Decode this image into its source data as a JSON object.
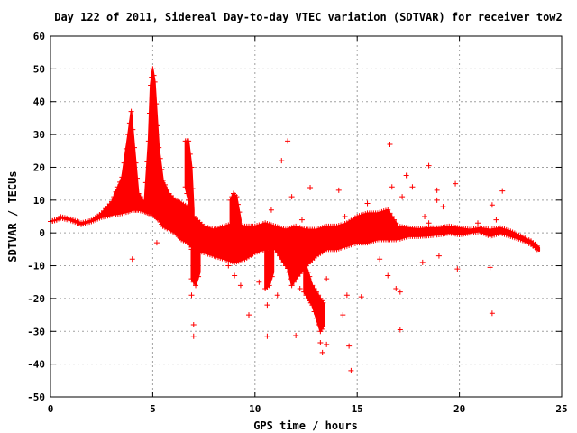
{
  "chart_data": {
    "type": "scatter",
    "title": "Day 122 of 2011, Sidereal Day-to-day VTEC variation (SDTVAR) for receiver tow2",
    "xlabel": "GPS time / hours",
    "ylabel": "SDTVAR / TECUs",
    "xlim": [
      0,
      25
    ],
    "ylim": [
      -50,
      60
    ],
    "xticks": [
      0,
      5,
      10,
      15,
      20,
      25
    ],
    "yticks": [
      -50,
      -40,
      -30,
      -20,
      -10,
      0,
      10,
      20,
      30,
      40,
      50,
      60
    ],
    "grid": true,
    "marker": "+",
    "color": "#ff0000",
    "series": [
      {
        "bands": [
          [
            [
              0,
              3.5,
              3.5
            ],
            [
              0.3,
              4,
              4
            ],
            [
              0.5,
              4.6,
              4.9
            ],
            [
              1,
              3.8,
              4.2
            ],
            [
              1.5,
              2.6,
              3
            ],
            [
              2,
              3.5,
              3.8
            ],
            [
              2.5,
              4.8,
              6
            ],
            [
              3,
              5.5,
              9.5
            ],
            [
              3.5,
              6,
              17
            ],
            [
              3.8,
              6.5,
              30
            ],
            [
              3.95,
              7,
              37
            ],
            [
              4.1,
              7,
              26
            ],
            [
              4.3,
              7,
              12
            ],
            [
              4.6,
              6.5,
              9
            ],
            [
              4.8,
              6,
              28
            ],
            [
              4.9,
              6,
              45
            ],
            [
              5,
              6,
              50
            ],
            [
              5.1,
              5,
              46
            ],
            [
              5.3,
              4,
              26
            ],
            [
              5.5,
              2,
              16
            ],
            [
              5.8,
              1,
              12
            ],
            [
              6.1,
              0,
              10
            ],
            [
              6.4,
              -2,
              9
            ],
            [
              6.7,
              -3,
              8
            ],
            [
              7,
              -5,
              5
            ],
            [
              7.5,
              -6,
              2
            ],
            [
              8,
              -7,
              1
            ],
            [
              8.5,
              -8,
              2
            ],
            [
              9,
              -9,
              3
            ],
            [
              9.5,
              -8,
              2
            ],
            [
              10,
              -6,
              2
            ],
            [
              10.5,
              -5,
              3
            ],
            [
              11,
              -5,
              2
            ],
            [
              11.5,
              -10,
              1
            ],
            [
              12,
              -14,
              2
            ],
            [
              12.5,
              -10,
              1
            ],
            [
              13,
              -7,
              1
            ],
            [
              13.5,
              -5,
              2
            ],
            [
              14,
              -5,
              2
            ],
            [
              14.5,
              -4,
              3
            ],
            [
              15,
              -3,
              5
            ],
            [
              15.5,
              -3,
              6
            ],
            [
              16,
              -2,
              6
            ],
            [
              16.5,
              -2,
              7
            ],
            [
              17,
              -2,
              2
            ],
            [
              17.5,
              -1,
              1.5
            ],
            [
              18,
              -1,
              1.2
            ],
            [
              18.5,
              -0.8,
              1.5
            ],
            [
              19,
              -0.5,
              1.5
            ],
            [
              19.5,
              0,
              2
            ],
            [
              20,
              -0.5,
              1.5
            ],
            [
              20.5,
              0,
              1
            ],
            [
              21,
              0.5,
              1.5
            ],
            [
              21.5,
              -1,
              1
            ],
            [
              22,
              0,
              1.5
            ],
            [
              22.5,
              -1,
              0.5
            ],
            [
              23,
              -2,
              -1
            ],
            [
              23.5,
              -3.5,
              -2.5
            ],
            [
              23.9,
              -5.5,
              -4.5
            ]
          ],
          [
            [
              6.6,
              14,
              28
            ],
            [
              6.75,
              10,
              28
            ],
            [
              6.9,
              0,
              20
            ],
            [
              7,
              -1,
              7
            ]
          ],
          [
            [
              8.8,
              0,
              10
            ],
            [
              8.95,
              0,
              12
            ],
            [
              9.1,
              -3,
              11
            ],
            [
              9.3,
              -1,
              4
            ]
          ],
          [
            [
              12.4,
              -18,
              -8
            ],
            [
              12.6,
              -20,
              -12
            ],
            [
              12.8,
              -22,
              -16
            ],
            [
              13,
              -26,
              -18
            ],
            [
              13.2,
              -30,
              -20
            ],
            [
              13.4,
              -28,
              -22
            ]
          ],
          [
            [
              6.9,
              -14,
              -5
            ],
            [
              7.1,
              -16,
              -6
            ],
            [
              7.3,
              -12,
              -5
            ]
          ],
          [
            [
              10.5,
              -17,
              -5
            ],
            [
              10.7,
              -16,
              -6
            ],
            [
              10.9,
              -12,
              -4
            ]
          ],
          [
            [
              11.6,
              -10,
              -5
            ],
            [
              11.8,
              -16,
              -10
            ],
            [
              12,
              -14,
              -8
            ]
          ]
        ],
        "outliers": [
          [
            4,
            -8
          ],
          [
            5.2,
            -3
          ],
          [
            5.5,
            6
          ],
          [
            6.3,
            4
          ],
          [
            6.9,
            -19
          ],
          [
            7,
            -28
          ],
          [
            7,
            -31.5
          ],
          [
            9.3,
            -16
          ],
          [
            9.7,
            -25
          ],
          [
            10.6,
            -22
          ],
          [
            10.6,
            -31.5
          ],
          [
            11.3,
            22
          ],
          [
            11.6,
            28
          ],
          [
            12,
            -31.3
          ],
          [
            12.2,
            -17
          ],
          [
            13.2,
            -33.5
          ],
          [
            13.3,
            -36.5
          ],
          [
            13.5,
            -34
          ],
          [
            14.1,
            13
          ],
          [
            14.3,
            -25
          ],
          [
            14.5,
            -19
          ],
          [
            14.6,
            -34.5
          ],
          [
            14.7,
            -42
          ],
          [
            15.2,
            -19.5
          ],
          [
            16.6,
            27
          ],
          [
            16.7,
            14
          ],
          [
            17.1,
            -29.5
          ],
          [
            16.9,
            -17
          ],
          [
            17.1,
            -18
          ],
          [
            17.4,
            17.5
          ],
          [
            17.7,
            14
          ],
          [
            18.3,
            5
          ],
          [
            18.5,
            20.5
          ],
          [
            18.5,
            3
          ],
          [
            18.9,
            10
          ],
          [
            18.9,
            13
          ],
          [
            19.2,
            8
          ],
          [
            19.8,
            15
          ],
          [
            19.9,
            -11
          ],
          [
            21.5,
            -10.5
          ],
          [
            21.6,
            -24.5
          ],
          [
            21.6,
            8.5
          ],
          [
            21.8,
            4
          ],
          [
            22.1,
            12.8
          ],
          [
            15.5,
            9
          ],
          [
            16.1,
            -8
          ],
          [
            19,
            -7
          ],
          [
            18.2,
            -9
          ],
          [
            20.9,
            3
          ],
          [
            12.7,
            13.8
          ],
          [
            14.4,
            5
          ],
          [
            8.7,
            -10
          ],
          [
            9,
            -13
          ],
          [
            10.2,
            -15
          ],
          [
            11.1,
            -19
          ],
          [
            13.5,
            -14
          ],
          [
            16.5,
            -13
          ],
          [
            17.2,
            11
          ],
          [
            12.3,
            4
          ],
          [
            10.8,
            7
          ],
          [
            11.8,
            11
          ]
        ]
      }
    ]
  }
}
